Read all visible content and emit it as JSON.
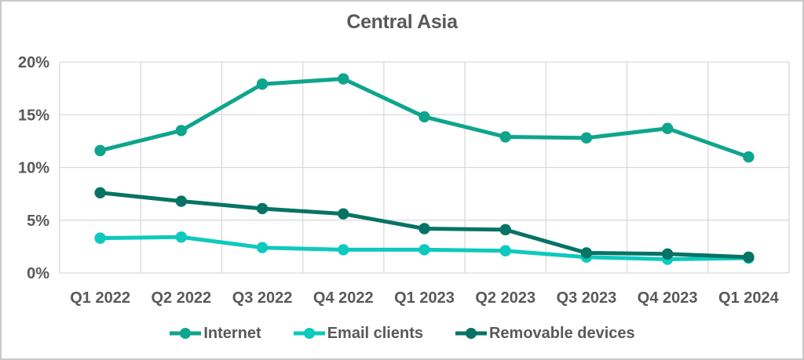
{
  "chart_data": {
    "type": "line",
    "title": "Central Asia",
    "categories": [
      "Q1 2022",
      "Q2 2022",
      "Q3 2022",
      "Q4 2022",
      "Q1 2023",
      "Q2 2023",
      "Q3 2023",
      "Q4 2023",
      "Q1 2024"
    ],
    "series": [
      {
        "name": "Internet",
        "color": "#0EA58C",
        "values": [
          11.6,
          13.5,
          17.9,
          18.4,
          14.8,
          12.9,
          12.8,
          13.7,
          11.0
        ]
      },
      {
        "name": "Email clients",
        "color": "#0EC9BD",
        "values": [
          3.3,
          3.4,
          2.4,
          2.2,
          2.2,
          2.1,
          1.5,
          1.3,
          1.4
        ]
      },
      {
        "name": "Removable devices",
        "color": "#077365",
        "values": [
          7.6,
          6.8,
          6.1,
          5.6,
          4.2,
          4.1,
          1.9,
          1.8,
          1.5
        ]
      }
    ],
    "y_axis": {
      "min": 0,
      "max": 20,
      "ticks": [
        0,
        5,
        10,
        15,
        20
      ],
      "tick_labels": [
        "0%",
        "5%",
        "10%",
        "15%",
        "20%"
      ],
      "unit": "%"
    },
    "grid": true,
    "legend_position": "bottom",
    "colors": {
      "text": "#595959",
      "gridline": "#D9D9D9",
      "background": "#FFFFFF",
      "frame_border": "#C8C8C8"
    }
  }
}
